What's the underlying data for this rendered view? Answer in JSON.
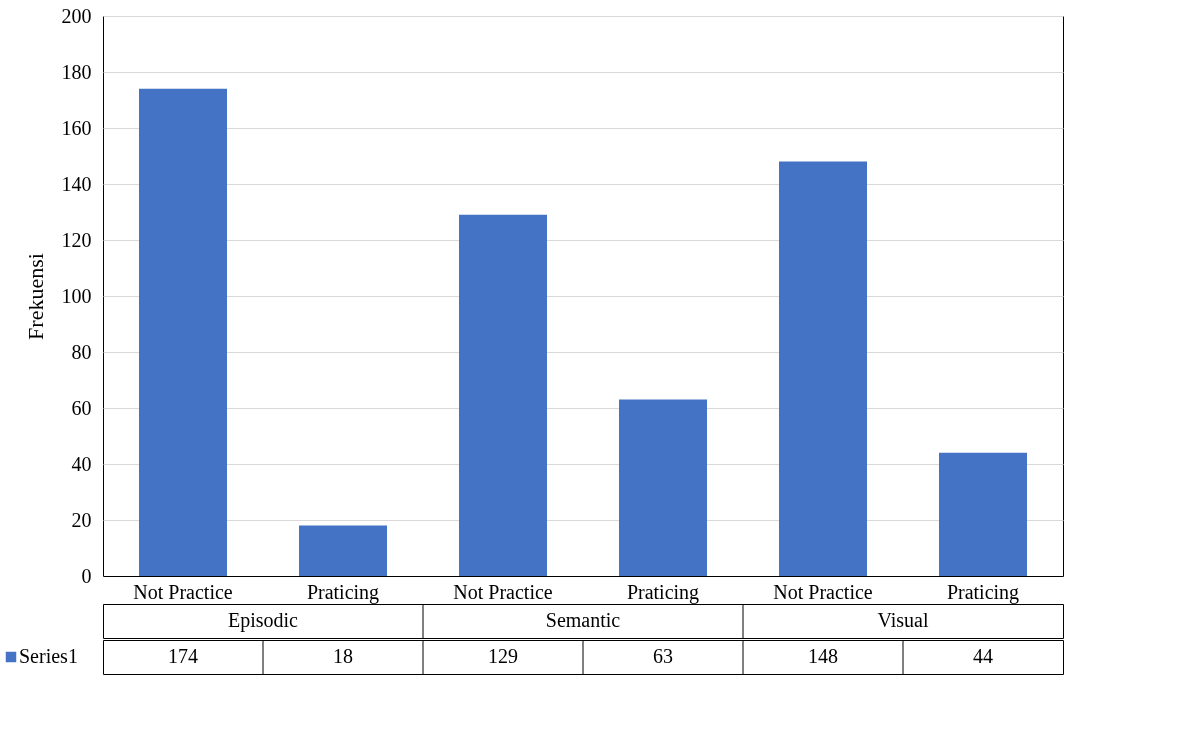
{
  "chart_data": {
    "type": "bar",
    "ylabel": "Frekuensi",
    "categories": [
      "Not Practice",
      "Praticing",
      "Not Practice",
      "Praticing",
      "Not Practice",
      "Praticing"
    ],
    "series": [
      {
        "name": "Series1",
        "color": "#4472c4",
        "values": [
          174,
          18,
          129,
          63,
          148,
          44
        ]
      }
    ],
    "annotations": [
      "Episodic",
      "Semantic",
      "Visual"
    ],
    "ylim": [
      0,
      200
    ],
    "yticks": [
      0,
      20,
      40,
      60,
      80,
      100,
      120,
      140,
      160,
      180,
      200
    ],
    "grid": "y",
    "data_labels": true,
    "legend": "bottom left"
  }
}
